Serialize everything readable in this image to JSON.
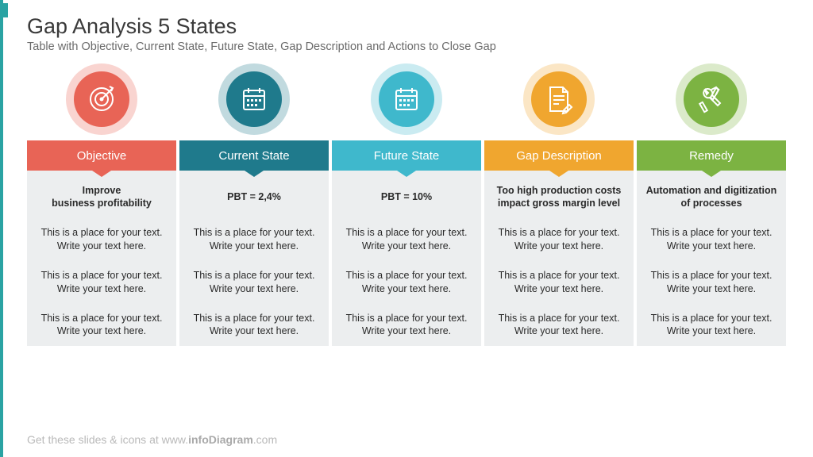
{
  "accent_color": "#2aa3a3",
  "title": "Gap Analysis 5 States",
  "subtitle": "Table with Objective, Current State, Future State, Gap Description and Actions to Close Gap",
  "footer_prefix": "Get these slides & icons at www.",
  "footer_bold": "infoDiagram",
  "footer_suffix": ".com",
  "placeholder_text": "This is a place for your text.\nWrite your text here.",
  "columns": [
    {
      "label": "Objective",
      "color": "#e86456",
      "icon": "target",
      "main": "Improve\nbusiness profitability"
    },
    {
      "label": "Current State",
      "color": "#1f7a8c",
      "icon": "calendar",
      "main": "PBT = 2,4%"
    },
    {
      "label": "Future State",
      "color": "#3fb8cc",
      "icon": "calendar",
      "main": "PBT = 10%"
    },
    {
      "label": "Gap Description",
      "color": "#f0a62f",
      "icon": "note",
      "main": "Too high production costs impact gross margin level"
    },
    {
      "label": "Remedy",
      "color": "#7cb342",
      "icon": "tools",
      "main": "Automation and digitization of processes"
    }
  ]
}
